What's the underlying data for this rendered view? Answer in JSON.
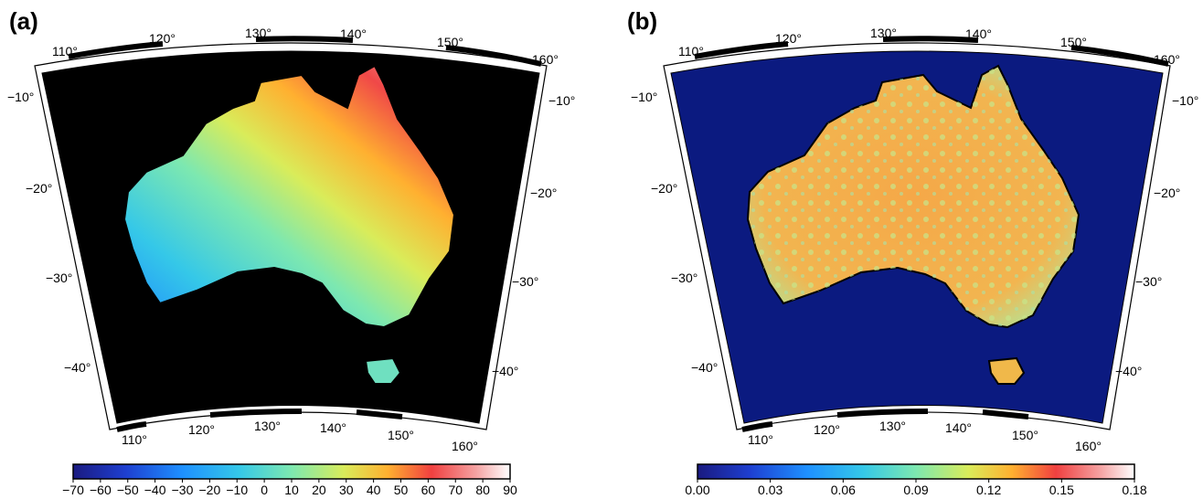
{
  "panels": [
    {
      "label": "(a)",
      "top_lon_labels": [
        "110°",
        "120°",
        "130°",
        "140°",
        "150°",
        "160°"
      ],
      "bottom_lon_labels": [
        "110°",
        "120°",
        "130°",
        "140°",
        "150°",
        "160°"
      ],
      "left_lat_labels": [
        "−10°",
        "−20°",
        "−30°",
        "−40°"
      ],
      "right_lat_labels": [
        "−10°",
        "−20°",
        "−30°",
        "−40°"
      ],
      "ocean_color": "#000000",
      "colorbar": {
        "ticks": [
          "−70",
          "−60",
          "−50",
          "−40",
          "−30",
          "−20",
          "−10",
          "0",
          "10",
          "20",
          "30",
          "40",
          "50",
          "60",
          "70",
          "80",
          "90"
        ],
        "range": [
          -70,
          90
        ],
        "colormap": [
          "#1a1a80",
          "#1e3fd0",
          "#1e90ff",
          "#35c8e8",
          "#7de8b0",
          "#d9ec5a",
          "#ffb030",
          "#f04040",
          "#f4a0a0",
          "#ffffff"
        ]
      }
    },
    {
      "label": "(b)",
      "top_lon_labels": [
        "110°",
        "120°",
        "130°",
        "140°",
        "150°",
        "160°"
      ],
      "bottom_lon_labels": [
        "110°",
        "120°",
        "130°",
        "140°",
        "150°",
        "160°"
      ],
      "left_lat_labels": [
        "−10°",
        "−20°",
        "−30°",
        "−40°"
      ],
      "right_lat_labels": [
        "−10°",
        "−20°",
        "−30°",
        "−40°"
      ],
      "ocean_color": "#0b1a80",
      "colorbar": {
        "ticks": [
          "0.00",
          "0.03",
          "0.06",
          "0.09",
          "0.12",
          "0.15",
          "0.18"
        ],
        "range": [
          0,
          0.18
        ],
        "colormap": [
          "#0b1a80",
          "#1e3fd0",
          "#1e90ff",
          "#35c8e8",
          "#7de8b0",
          "#d9ec5a",
          "#ffb030",
          "#f04040",
          "#f4a0a0",
          "#ffffff"
        ]
      }
    }
  ]
}
